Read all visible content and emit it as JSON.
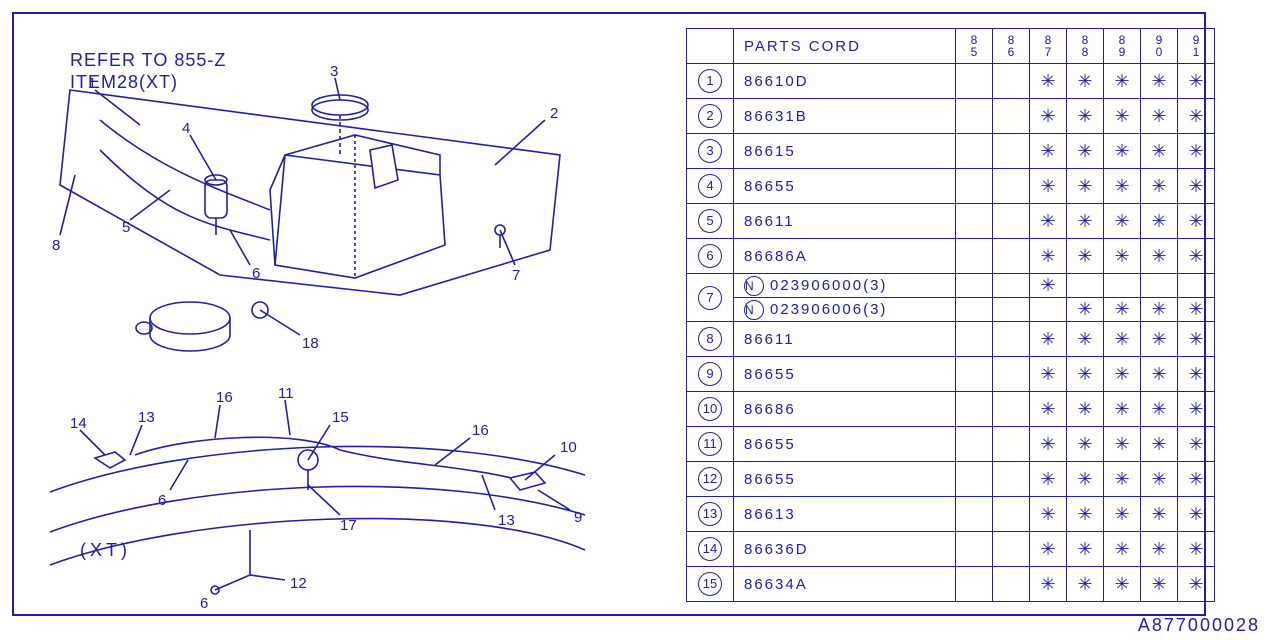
{
  "colors": {
    "line": "#2020a0",
    "bg": "#ffffff"
  },
  "refer_text_1": "REFER TO 855-Z",
  "refer_text_2": "ITEM28(XT)",
  "bottom_label": "(XT)",
  "figure_code": "A877000028",
  "table": {
    "header": "PARTS CORD",
    "years": [
      "85",
      "86",
      "87",
      "88",
      "89",
      "90",
      "91"
    ],
    "rows": [
      {
        "num": "1",
        "circ": true,
        "part": "86610D",
        "marks": [
          "",
          "",
          "*",
          "*",
          "*",
          "*",
          "*"
        ],
        "rowspan": 1
      },
      {
        "num": "2",
        "circ": true,
        "part": "86631B",
        "marks": [
          "",
          "",
          "*",
          "*",
          "*",
          "*",
          "*"
        ],
        "rowspan": 1
      },
      {
        "num": "3",
        "circ": true,
        "part": "86615",
        "marks": [
          "",
          "",
          "*",
          "*",
          "*",
          "*",
          "*"
        ],
        "rowspan": 1
      },
      {
        "num": "4",
        "circ": true,
        "part": "86655",
        "marks": [
          "",
          "",
          "*",
          "*",
          "*",
          "*",
          "*"
        ],
        "rowspan": 1
      },
      {
        "num": "5",
        "circ": true,
        "part": "86611",
        "marks": [
          "",
          "",
          "*",
          "*",
          "*",
          "*",
          "*"
        ],
        "rowspan": 1
      },
      {
        "num": "6",
        "circ": true,
        "part": "86686A",
        "marks": [
          "",
          "",
          "*",
          "*",
          "*",
          "*",
          "*"
        ],
        "rowspan": 1
      },
      {
        "num": "7",
        "circ": true,
        "part": "N:023906000(3)",
        "marks": [
          "",
          "",
          "*",
          "",
          "",
          "",
          ""
        ],
        "rowspan": 2
      },
      {
        "num": "",
        "circ": false,
        "part": "N:023906006(3)",
        "marks": [
          "",
          "",
          "",
          "*",
          "*",
          "*",
          "*"
        ],
        "rowspan": 0
      },
      {
        "num": "8",
        "circ": true,
        "part": "86611",
        "marks": [
          "",
          "",
          "*",
          "*",
          "*",
          "*",
          "*"
        ],
        "rowspan": 1
      },
      {
        "num": "9",
        "circ": true,
        "part": "86655",
        "marks": [
          "",
          "",
          "*",
          "*",
          "*",
          "*",
          "*"
        ],
        "rowspan": 1
      },
      {
        "num": "10",
        "circ": true,
        "part": "86686",
        "marks": [
          "",
          "",
          "*",
          "*",
          "*",
          "*",
          "*"
        ],
        "rowspan": 1
      },
      {
        "num": "11",
        "circ": true,
        "part": "86655",
        "marks": [
          "",
          "",
          "*",
          "*",
          "*",
          "*",
          "*"
        ],
        "rowspan": 1
      },
      {
        "num": "12",
        "circ": true,
        "part": "86655",
        "marks": [
          "",
          "",
          "*",
          "*",
          "*",
          "*",
          "*"
        ],
        "rowspan": 1
      },
      {
        "num": "13",
        "circ": true,
        "part": "86613",
        "marks": [
          "",
          "",
          "*",
          "*",
          "*",
          "*",
          "*"
        ],
        "rowspan": 1
      },
      {
        "num": "14",
        "circ": true,
        "part": "86636D",
        "marks": [
          "",
          "",
          "*",
          "*",
          "*",
          "*",
          "*"
        ],
        "rowspan": 1
      },
      {
        "num": "15",
        "circ": true,
        "part": "86634A",
        "marks": [
          "",
          "",
          "*",
          "*",
          "*",
          "*",
          "*"
        ],
        "rowspan": 1
      }
    ]
  },
  "callouts_top": [
    "1",
    "2",
    "3",
    "4",
    "5",
    "6",
    "7",
    "8",
    "18"
  ],
  "callouts_bot": [
    "6",
    "6",
    "9",
    "10",
    "11",
    "12",
    "13",
    "13",
    "14",
    "15",
    "16",
    "16",
    "17"
  ]
}
